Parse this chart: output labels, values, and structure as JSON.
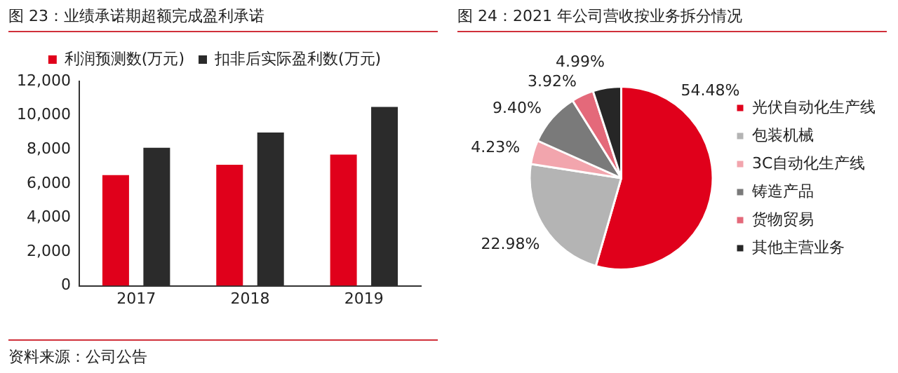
{
  "chart_data": [
    {
      "type": "bar",
      "title": "图 23：业绩承诺期超额完成盈利承诺",
      "categories": [
        "2017",
        "2018",
        "2019"
      ],
      "series": [
        {
          "name": "利润预测数(万元)",
          "color": "#e0001b",
          "values": [
            6500,
            7100,
            7700
          ]
        },
        {
          "name": "扣非后实际盈利数(万元)",
          "color": "#2b2b2b",
          "values": [
            8100,
            9000,
            10500
          ]
        }
      ],
      "ylim": [
        0,
        12000
      ],
      "yticks": [
        {
          "value": 0,
          "label": "0"
        },
        {
          "value": 2000,
          "label": "2,000"
        },
        {
          "value": 4000,
          "label": "4,000"
        },
        {
          "value": 6000,
          "label": "6,000"
        },
        {
          "value": 8000,
          "label": "8,000"
        },
        {
          "value": 10000,
          "label": "10,000"
        },
        {
          "value": 12000,
          "label": "12,000"
        }
      ],
      "grid": false,
      "legend": "top",
      "annotations": [
        "资料来源：公司公告"
      ]
    },
    {
      "type": "pie",
      "title": "图 24：2021 年公司营收按业务拆分情况",
      "categories": [
        "光伏自动化生产线",
        "包装机械",
        "3C自动化生产线",
        "铸造产品",
        "货物贸易",
        "其他主营业务"
      ],
      "values": [
        54.48,
        22.98,
        4.23,
        9.4,
        3.92,
        4.99
      ],
      "value_labels": [
        "54.48%",
        "22.98%",
        "4.23%",
        "9.40%",
        "3.92%",
        "4.99%"
      ],
      "colors": [
        "#e0001b",
        "#b4b4b4",
        "#f2a5ad",
        "#7a7a7a",
        "#e4697a",
        "#262626"
      ],
      "legend": "right"
    }
  ]
}
